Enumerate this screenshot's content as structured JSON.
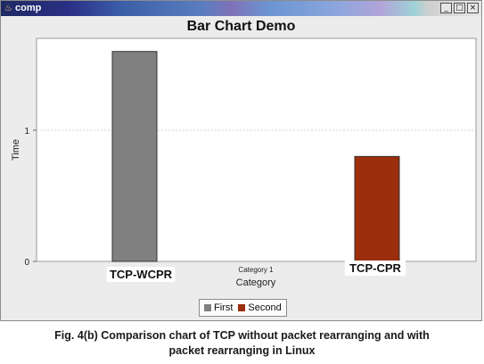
{
  "window": {
    "title": "comp"
  },
  "titlebar_buttons": {
    "minimize": "_",
    "maximize": "□",
    "close": "×"
  },
  "chart_data": {
    "type": "bar",
    "title": "Bar Chart Demo",
    "xlabel": "Category",
    "ylabel": "Time",
    "category_title": "Category 1",
    "categories": [
      "TCP-WCPR",
      "TCP-CPR"
    ],
    "series": [
      {
        "name": "First",
        "values": [
          1.6,
          null
        ],
        "color": "#808080"
      },
      {
        "name": "Second",
        "values": [
          null,
          0.8
        ],
        "color": "#9b2e0d"
      }
    ],
    "yticks": [
      0,
      1
    ],
    "ylim": [
      0,
      1.7
    ],
    "grid": true,
    "legend": "bottom-center"
  },
  "caption": {
    "line1": "Fig. 4(b) Comparison chart of TCP without packet rearranging and with",
    "line2": "packet rearranging in Linux"
  }
}
